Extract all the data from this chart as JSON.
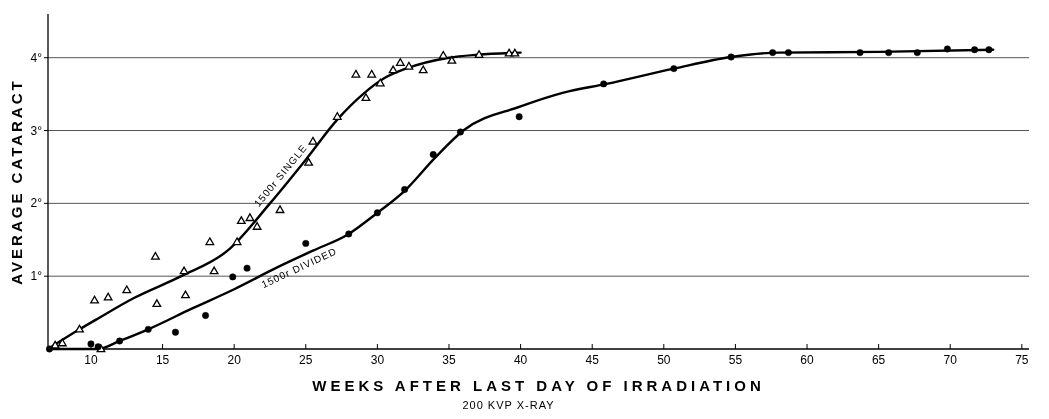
{
  "chart_data": {
    "type": "scatter",
    "xlabel": "WEEKS AFTER LAST DAY OF IRRADIATION",
    "ylabel": "AVERAGE CATARACT",
    "annotations": [
      "200 KVP X-RAY"
    ],
    "xlim": [
      7,
      75.5
    ],
    "xticks": [
      10,
      15,
      20,
      25,
      30,
      35,
      40,
      45,
      50,
      55,
      60,
      65,
      70,
      75
    ],
    "ylim": [
      0,
      4.6
    ],
    "yticks": [
      {
        "value": 1,
        "label": "1°"
      },
      {
        "value": 2,
        "label": "2°"
      },
      {
        "value": 3,
        "label": "3°"
      },
      {
        "value": 4,
        "label": "4°"
      }
    ],
    "grid": "y",
    "series": [
      {
        "type": "line",
        "name": "1500r SINGLE",
        "color": "#000000",
        "marker": "none",
        "x": [
          7,
          9.2,
          10.5,
          13,
          16.3,
          19.6,
          22.5,
          25,
          27.2,
          29,
          30.5,
          32,
          35,
          37,
          40
        ],
        "values": [
          0,
          0.27,
          0.42,
          0.7,
          1.0,
          1.36,
          2.0,
          2.6,
          3.15,
          3.5,
          3.72,
          3.85,
          4.0,
          4.04,
          4.07
        ]
      },
      {
        "type": "line",
        "name": "1500r DIVIDED",
        "color": "#000000",
        "marker": "none",
        "x": [
          7,
          10.5,
          12,
          14,
          17,
          20,
          23,
          25.5,
          28,
          30,
          32,
          34,
          36,
          40,
          43,
          46,
          50.7,
          54.7,
          58,
          65,
          73
        ],
        "values": [
          0,
          0,
          0.11,
          0.27,
          0.55,
          0.82,
          1.12,
          1.35,
          1.58,
          1.87,
          2.19,
          2.62,
          3.0,
          3.33,
          3.52,
          3.64,
          3.85,
          4.01,
          4.07,
          4.08,
          4.11
        ]
      },
      {
        "color": "#000000",
        "marker": "triangle",
        "x": [
          7.5,
          8,
          9.2,
          10.25,
          10.7,
          11.2,
          12.5,
          14.5,
          14.6,
          16.5,
          16.6,
          18.3,
          18.6,
          20.2,
          20.5,
          21.1,
          21.6,
          23.2,
          25.2,
          25.5,
          27.2,
          28.5,
          29.2,
          29.6,
          30.2,
          31.1,
          31.6,
          32.2,
          33.2,
          34.6,
          35.2,
          37.1,
          39.2,
          39.6
        ],
        "values": [
          0.05,
          0.08,
          0.27,
          0.67,
          0,
          0.71,
          0.81,
          1.27,
          0.62,
          1.07,
          0.74,
          1.47,
          1.07,
          1.47,
          1.76,
          1.8,
          1.68,
          1.91,
          2.56,
          2.85,
          3.19,
          3.77,
          3.45,
          3.77,
          3.65,
          3.83,
          3.93,
          3.88,
          3.83,
          4.03,
          3.96,
          4.04,
          4.06,
          4.06
        ]
      },
      {
        "color": "#000000",
        "marker": "circle",
        "x": [
          7.1,
          10,
          10.5,
          12,
          14,
          15.9,
          18,
          19.9,
          20.9,
          25,
          28,
          30,
          31.9,
          33.9,
          35.8,
          39.9,
          45.8,
          50.7,
          54.7,
          57.6,
          58.7,
          63.7,
          65.7,
          67.7,
          69.8,
          71.7,
          72.7
        ],
        "values": [
          0,
          0.07,
          0.03,
          0.11,
          0.27,
          0.23,
          0.46,
          0.99,
          1.11,
          1.45,
          1.58,
          1.87,
          2.19,
          2.67,
          2.98,
          3.19,
          3.64,
          3.85,
          4.01,
          4.07,
          4.07,
          4.07,
          4.07,
          4.07,
          4.12,
          4.11,
          4.11
        ]
      }
    ]
  }
}
